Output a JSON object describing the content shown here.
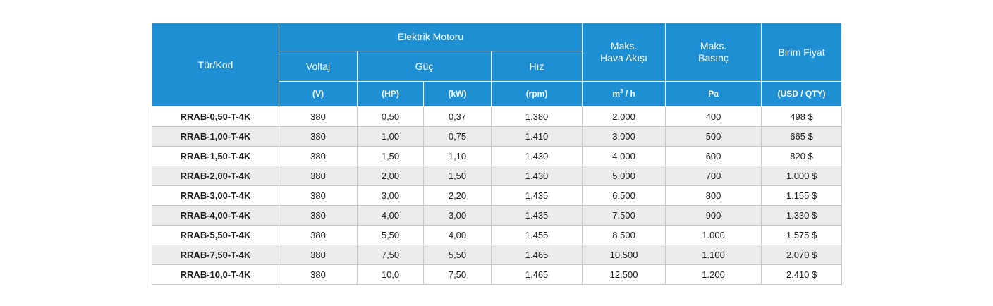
{
  "header": {
    "type_code": "Tür/Kod",
    "motor_group": "Elektrik Motoru",
    "voltage": "Voltaj",
    "power": "Güç",
    "speed": "Hız",
    "max_airflow_line1": "Maks.",
    "max_airflow_line2": "Hava Akışı",
    "max_pressure_line1": "Maks.",
    "max_pressure_line2": "Basınç",
    "unit_price": "Birim Fiyat"
  },
  "units": {
    "voltage": "(V)",
    "power_hp": "(HP)",
    "power_kw": "(kW)",
    "speed": "(rpm)",
    "airflow_base": "m",
    "airflow_sup": "3",
    "airflow_rest": "/ h",
    "pressure": "Pa",
    "price": "(USD / QTY)"
  },
  "rows": [
    {
      "code": "RRAB-0,50-T-4K",
      "voltage": "380",
      "hp": "0,50",
      "kw": "0,37",
      "rpm": "1.380",
      "airflow": "2.000",
      "pressure": "400",
      "price": "498 $"
    },
    {
      "code": "RRAB-1,00-T-4K",
      "voltage": "380",
      "hp": "1,00",
      "kw": "0,75",
      "rpm": "1.410",
      "airflow": "3.000",
      "pressure": "500",
      "price": "665 $"
    },
    {
      "code": "RRAB-1,50-T-4K",
      "voltage": "380",
      "hp": "1,50",
      "kw": "1,10",
      "rpm": "1.430",
      "airflow": "4.000",
      "pressure": "600",
      "price": "820 $"
    },
    {
      "code": "RRAB-2,00-T-4K",
      "voltage": "380",
      "hp": "2,00",
      "kw": "1,50",
      "rpm": "1.430",
      "airflow": "5.000",
      "pressure": "700",
      "price": "1.000 $"
    },
    {
      "code": "RRAB-3,00-T-4K",
      "voltage": "380",
      "hp": "3,00",
      "kw": "2,20",
      "rpm": "1.435",
      "airflow": "6.500",
      "pressure": "800",
      "price": "1.155 $"
    },
    {
      "code": "RRAB-4,00-T-4K",
      "voltage": "380",
      "hp": "4,00",
      "kw": "3,00",
      "rpm": "1.435",
      "airflow": "7.500",
      "pressure": "900",
      "price": "1.330 $"
    },
    {
      "code": "RRAB-5,50-T-4K",
      "voltage": "380",
      "hp": "5,50",
      "kw": "4,00",
      "rpm": "1.455",
      "airflow": "8.500",
      "pressure": "1.000",
      "price": "1.575 $"
    },
    {
      "code": "RRAB-7,50-T-4K",
      "voltage": "380",
      "hp": "7,50",
      "kw": "5,50",
      "rpm": "1.465",
      "airflow": "10.500",
      "pressure": "1.100",
      "price": "2.070 $"
    },
    {
      "code": "RRAB-10,0-T-4K",
      "voltage": "380",
      "hp": "10,0",
      "kw": "7,50",
      "rpm": "1.465",
      "airflow": "12.500",
      "pressure": "1.200",
      "price": "2.410 $"
    }
  ],
  "colors": {
    "header_bg": "#1f8fd3",
    "header_text": "#ffffff",
    "stripe": "#ececec"
  }
}
